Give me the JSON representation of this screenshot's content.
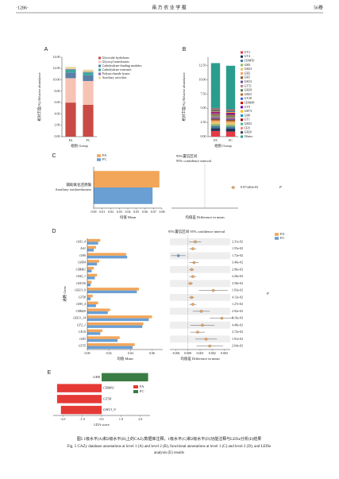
{
  "header": {
    "page": "·1286·",
    "journal": "南 方 农 业 学 报",
    "volume": "56卷"
  },
  "chart_data": [
    {
      "panel": "A",
      "type": "stacked_bar",
      "categories": [
        "FA",
        "FC"
      ],
      "series": [
        {
          "name": "Glycoside hydrolases",
          "color": "#c94a44",
          "values": [
            6.0,
            5.6
          ]
        },
        {
          "name": "Glycosyl transferases",
          "color": "#f7c3b5",
          "values": [
            4.3,
            4.2
          ]
        },
        {
          "name": "Carbohydrate-binding modules",
          "color": "#5a7fa8",
          "values": [
            1.0,
            1.0
          ]
        },
        {
          "name": "Carbohydrate esterases",
          "color": "#3aa89c",
          "values": [
            0.5,
            0.5
          ]
        },
        {
          "name": "Polysaccharide lyases",
          "color": "#8e6bb0",
          "values": [
            0.1,
            0.1
          ]
        },
        {
          "name": "Auxiliary activities",
          "color": "#e8d8a0",
          "values": [
            0.4,
            0.4
          ]
        }
      ],
      "ylim": [
        0,
        14
      ],
      "yticks": [
        {
          "value": 0,
          "label": "0.00"
        },
        {
          "value": 2,
          "label": "2.00"
        },
        {
          "value": 4,
          "label": "4.00"
        },
        {
          "value": 6,
          "label": "6.00"
        },
        {
          "value": 8,
          "label": "8.00"
        },
        {
          "value": 10,
          "label": "10.00"
        },
        {
          "value": 12,
          "label": "12.00"
        },
        {
          "value": 14,
          "label": "14.00"
        }
      ],
      "ylabel": "相对丰度(%) Relative abundance",
      "xlabel": "组别 Group"
    },
    {
      "panel": "B",
      "type": "stacked_bar",
      "categories": [
        "FA",
        "FC"
      ],
      "series": [
        {
          "name": "GT2",
          "color": "#e63946",
          "values": [
            1.0,
            0.9
          ]
        },
        {
          "name": "GT4",
          "color": "#1d3557",
          "values": [
            0.5,
            0.5
          ]
        },
        {
          "name": "CBM50",
          "color": "#457b9d",
          "values": [
            0.4,
            0.4
          ]
        },
        {
          "name": "GH3",
          "color": "#90be6d",
          "values": [
            0.35,
            0.33
          ]
        },
        {
          "name": "GH23",
          "color": "#e9c46a",
          "values": [
            0.3,
            0.3
          ]
        },
        {
          "name": "GH2",
          "color": "#f4a261",
          "values": [
            0.3,
            0.28
          ]
        },
        {
          "name": "GH1",
          "color": "#8d5524",
          "values": [
            0.25,
            0.24
          ]
        },
        {
          "name": "GH13",
          "color": "#6a4c93",
          "values": [
            0.25,
            0.25
          ]
        },
        {
          "name": "GT51",
          "color": "#b5838d",
          "values": [
            0.2,
            0.2
          ]
        },
        {
          "name": "GH28",
          "color": "#588157",
          "values": [
            0.2,
            0.18
          ]
        },
        {
          "name": "GH25",
          "color": "#bc6c25",
          "values": [
            0.2,
            0.2
          ]
        },
        {
          "name": "GT28",
          "color": "#4361ee",
          "values": [
            0.15,
            0.15
          ]
        },
        {
          "name": "CBM48",
          "color": "#d00000",
          "values": [
            0.15,
            0.14
          ]
        },
        {
          "name": "GT9",
          "color": "#7209b7",
          "values": [
            0.15,
            0.15
          ]
        },
        {
          "name": "GH73",
          "color": "#ffb703",
          "values": [
            0.12,
            0.12
          ]
        },
        {
          "name": "GH0",
          "color": "#0096c7",
          "values": [
            0.12,
            0.13
          ]
        },
        {
          "name": "GT1",
          "color": "#9d0208",
          "values": [
            0.12,
            0.12
          ]
        },
        {
          "name": "GH35",
          "color": "#52b788",
          "values": [
            0.1,
            0.1
          ]
        },
        {
          "name": "CE8",
          "color": "#f28482",
          "values": [
            0.1,
            0.1
          ]
        },
        {
          "name": "GH20",
          "color": "#3d405b",
          "values": [
            0.1,
            0.1
          ]
        },
        {
          "name": "Others",
          "color": "#2a9d8f",
          "values": [
            7.9,
            7.6
          ]
        }
      ],
      "ylim": [
        0,
        14
      ],
      "yticks": [
        {
          "value": 0,
          "label": "0.00"
        },
        {
          "value": 2.5,
          "label": "2.50"
        },
        {
          "value": 5,
          "label": "5.00"
        },
        {
          "value": 7.5,
          "label": "7.50"
        },
        {
          "value": 10,
          "label": "10.00"
        },
        {
          "value": 12.5,
          "label": "12.50"
        }
      ],
      "ylabel": "相对丰度(%) Relative abundance",
      "xlabel": "组别 Group"
    },
    {
      "panel": "C",
      "type": "extended_error_bar",
      "categories": [
        [
          "辅助氧化还原酶",
          "Auxiliary oxidoreductase"
        ]
      ],
      "series": [
        {
          "name": "FA",
          "color": "#f2a65a",
          "values": [
            0.077
          ]
        },
        {
          "name": "FC",
          "color": "#6a9fd4",
          "values": [
            0.069
          ]
        }
      ],
      "xlim": [
        0,
        0.08
      ],
      "xticks": [
        {
          "value": 0,
          "label": "0.00"
        },
        0.01,
        0.02,
        0.03,
        0.04,
        0.05,
        0.06,
        0.07,
        0.08
      ],
      "x2lim": [
        -0.01,
        0.01
      ],
      "diff": [
        0.0085
      ],
      "diff_error": [
        0.0006
      ],
      "p_values": [
        0.008971463
      ],
      "p_value_labels": [
        "8.971463e-03"
      ],
      "ci_label": [
        "95%置信区间",
        "95% confidence interval"
      ],
      "xlabel": "均值 Mean",
      "x2label": "均值差 Difference in mean",
      "p_axis_label": "P"
    },
    {
      "panel": "D",
      "type": "extended_error_bar",
      "categories": [
        "GH1_4",
        "AA1",
        "GH0",
        "GH94",
        "CBM61",
        "GH2_1",
        "GH136",
        "GH13_9",
        "GT58",
        "GH5_4",
        "CBM20",
        "GH13_14",
        "GT2_1",
        "CE10",
        "GH3",
        "GT35"
      ],
      "series": [
        {
          "name": "FA",
          "color": "#f2a65a",
          "values": [
            0.012,
            0.008,
            0.036,
            0.011,
            0.006,
            0.009,
            0.004,
            0.048,
            0.005,
            0.01,
            0.021,
            0.06,
            0.052,
            0.014,
            0.03,
            0.044
          ]
        },
        {
          "name": "FC",
          "color": "#6a9fd4",
          "values": [
            0.01,
            0.006,
            0.037,
            0.009,
            0.004,
            0.007,
            0.003,
            0.046,
            0.003,
            0.008,
            0.019,
            0.057,
            0.051,
            0.012,
            0.028,
            0.042
          ]
        }
      ],
      "xlim": [
        0,
        0.07
      ],
      "xticks": [
        {
          "value": 0,
          "label": "0.00"
        },
        0.02,
        0.04,
        0.06
      ],
      "x2lim": [
        -0.0015,
        0.0035
      ],
      "x2ticks": [
        -0.001,
        {
          "value": 0,
          "label": "0.000"
        },
        0.001,
        0.002,
        0.003
      ],
      "diff": [
        0.0006,
        0.0004,
        -0.0008,
        0.0005,
        0.0003,
        0.0004,
        0.0002,
        0.0021,
        0.0003,
        0.0004,
        0.0011,
        0.0028,
        0.0012,
        0.0008,
        0.0015,
        0.0018
      ],
      "diff_error": [
        0.0005,
        0.0003,
        0.0006,
        0.0004,
        0.0002,
        0.0003,
        0.0002,
        0.0012,
        0.0002,
        0.0003,
        0.0007,
        0.001,
        0.001,
        0.0006,
        0.0009,
        0.0011
      ],
      "p_values": [
        0.0231,
        0.0155,
        0.0172,
        0.034,
        0.0206,
        0.0226,
        0.0358,
        0.0103,
        0.0413,
        0.0127,
        0.0292,
        0.0081,
        0.0448,
        0.0372,
        0.0191,
        0.0264
      ],
      "p_value_labels": [
        "2.31e-02",
        "1.55e-02",
        "1.72e-02",
        "3.40e-02",
        "2.06e-02",
        "2.26e-02",
        "3.58e-02",
        "1.03e-02",
        "4.13e-02",
        "1.27e-02",
        "2.92e-02",
        "8.10e-03",
        "4.48e-02",
        "3.72e-02",
        "1.91e-02",
        "2.64e-02"
      ],
      "ci_label": [
        "95%置信区间 95% confidence interval"
      ],
      "ylabel": "通路 Gene",
      "xlabel": "均值 Mean",
      "x2label": "均值差 Difference in mean",
      "p_axis_label": "P"
    },
    {
      "panel": "E",
      "type": "lda",
      "categories": [
        "GH0",
        "CBM61",
        "GT58",
        "GH13_9"
      ],
      "values": [
        2.4,
        -2.3,
        -2.3,
        -2.1
      ],
      "bar_colors": [
        "#3a7d44",
        "#e53935",
        "#e53935",
        "#e53935"
      ],
      "groups": [
        {
          "name": "FA",
          "color": "#e53935"
        },
        {
          "name": "FC",
          "color": "#3a7d44"
        }
      ],
      "xlim": [
        -2.5,
        2.5
      ],
      "xticks": [
        {
          "value": -2,
          "label": "-2.0"
        },
        {
          "value": -1,
          "label": "-1.0"
        },
        {
          "value": 0,
          "label": "0.0"
        },
        {
          "value": 1,
          "label": "1.0"
        },
        {
          "value": 2,
          "label": "2.0"
        }
      ],
      "xlabel": "LDA score"
    }
  ],
  "caption": {
    "zh": "图5  1级水平(A)和2级水平(B)上的CAZy数据库注释，1级水平(C)和2级水平(D)功能注释与LEfSe分析(E)结果",
    "en": [
      "Fig. 5  CAZy database annotations at level 1 (A) and level 2 (B), functional annotations at level 1 (C) and level 2 (D), and LEfSe",
      "analysis (E) results"
    ]
  }
}
